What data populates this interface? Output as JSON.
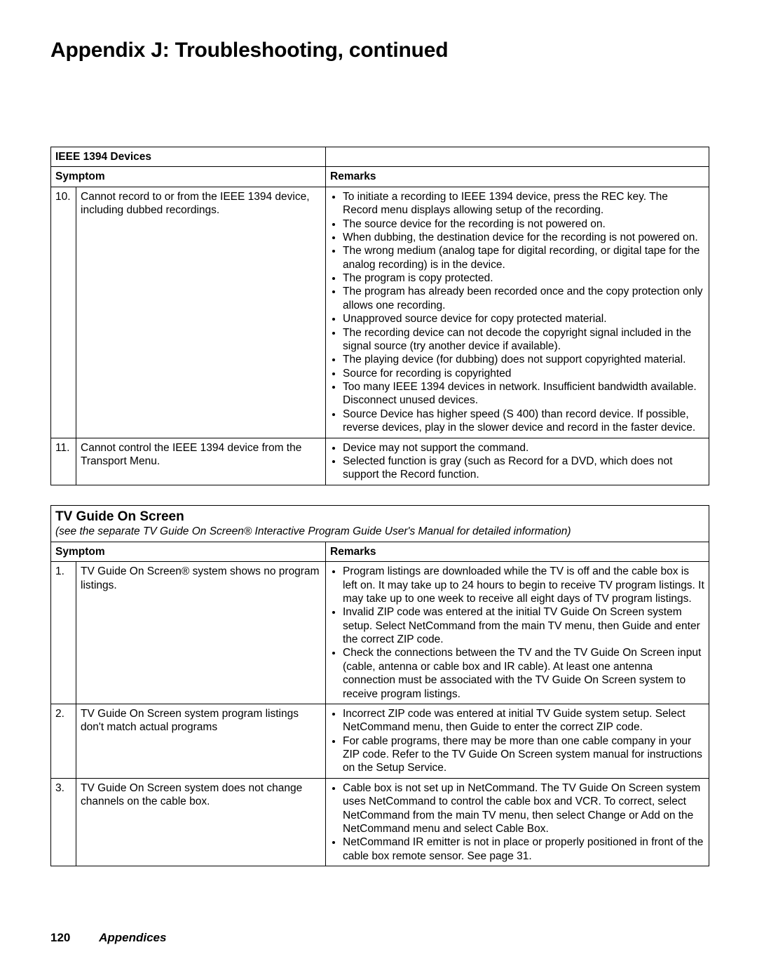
{
  "page": {
    "title": "Appendix J:   Troubleshooting, continued",
    "number": "120",
    "section": "Appendices"
  },
  "tables": {
    "ieee": {
      "title": "IEEE 1394 Devices",
      "col_symptom": "Symptom",
      "col_remarks": "Remarks",
      "rows": [
        {
          "num": "10.",
          "symptom": "Cannot record to or from the IEEE 1394 device, including dubbed recordings.",
          "remarks": [
            "To initiate a recording to IEEE 1394 device, press the REC key.  The Record menu displays allowing setup of the recording.",
            "The source device for the recording is not powered on.",
            "When dubbing, the destination device for the recording is not powered on.",
            "The wrong medium (analog tape for digital recording, or digital tape for the analog recording) is in the device.",
            "The program is copy protected.",
            "The program has already been recorded once and the copy protection only allows one recording.",
            "Unapproved source device for copy protected material.",
            "The recording device can not decode the copyright signal included in the signal source (try another device if available).",
            "The playing device (for dubbing) does not support copyrighted material.",
            "Source for recording is copyrighted",
            "Too many IEEE 1394 devices in network. Insufficient bandwidth available.  Disconnect unused devices.",
            "Source Device has higher speed (S 400) than record device.  If possible, reverse devices, play in the slower device and record in the faster device."
          ]
        },
        {
          "num": "11.",
          "symptom": "Cannot control the IEEE 1394 device from the Transport Menu.",
          "remarks": [
            "Device may not support the command.",
            "Selected function is gray (such as Record for a DVD, which does not support the Record function."
          ]
        }
      ]
    },
    "tvg": {
      "title": "TV Guide On Screen",
      "subtitle": "(see the separate TV Guide On Screen® Interactive Program Guide User's Manual for detailed information)",
      "col_symptom": "Symptom",
      "col_remarks": "Remarks",
      "rows": [
        {
          "num": "1.",
          "symptom": "TV Guide On Screen® system shows no program listings.",
          "remarks": [
            "Program listings are downloaded while the TV is off and the cable box is left on.  It may take up to 24 hours to begin to receive TV program listings.  It may take up to one week to receive all eight days of TV program listings.",
            "Invalid ZIP code was entered at the initial TV Guide On Screen system setup.  Select NetCommand from the main TV menu, then Guide and enter the correct ZIP code.",
            "Check the connections between the TV and the TV Guide On Screen input (cable, antenna or cable box and IR cable).  At least one antenna connection must be associated with the TV Guide On Screen system to receive program listings."
          ]
        },
        {
          "num": "2.",
          "symptom": "TV Guide On Screen system program listings don't match actual programs",
          "remarks": [
            "Incorrect ZIP code was entered at initial TV Guide system setup.  Select NetCommand menu, then Guide to enter the correct ZIP code.",
            "For cable programs, there may be more than one cable company in your ZIP code.  Refer to the TV Guide On Screen system manual for instructions on the Setup Service."
          ]
        },
        {
          "num": "3.",
          "symptom": "TV Guide On Screen system does not change channels on the cable box.",
          "remarks": [
            "Cable box is not set up in NetCommand.  The TV Guide On Screen system uses NetCommand to control the cable box and VCR.  To correct, select NetCommand from the main TV menu, then select Change or Add on the NetCommand menu and select Cable Box.",
            "NetCommand IR emitter is not in place or properly positioned in front of the cable box remote sensor.  See page 31."
          ]
        }
      ]
    }
  }
}
